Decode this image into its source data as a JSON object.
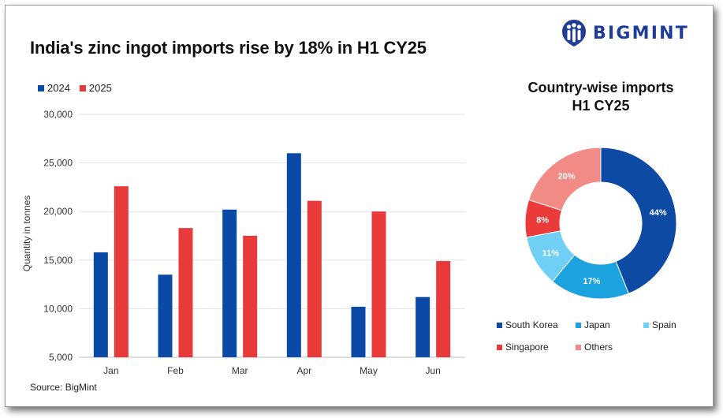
{
  "title": "India's zinc ingot imports rise by 18% in H1  CY25",
  "logo": {
    "text": "BIGMINT",
    "icon": "people-icon",
    "color": "#1f3d97"
  },
  "source": "Source: BigMint",
  "chart_data": [
    {
      "type": "bar",
      "title": "India's zinc ingot imports rise by 18% in H1  CY25",
      "xlabel": "",
      "ylabel": "Quantity in tonnes",
      "categories": [
        "Jan",
        "Feb",
        "Mar",
        "Apr",
        "May",
        "Jun"
      ],
      "series": [
        {
          "name": "2024",
          "color": "#0a4aa6",
          "values": [
            15800,
            13500,
            20200,
            26000,
            10200,
            11200
          ]
        },
        {
          "name": "2025",
          "color": "#e83a3a",
          "values": [
            22600,
            18300,
            17500,
            21100,
            20000,
            14900
          ]
        }
      ],
      "ylim": [
        5000,
        30000
      ],
      "yticks": [
        "5,000",
        "10,000",
        "15,000",
        "20,000",
        "25,000",
        "30,000"
      ],
      "ytick_values": [
        5000,
        10000,
        15000,
        20000,
        25000,
        30000
      ],
      "grid": true,
      "legend_position": "top-left"
    },
    {
      "type": "pie",
      "title": "Country-wise imports",
      "subtitle": "H1 CY25",
      "donut": true,
      "labels": [
        "South Korea",
        "Japan",
        "Spain",
        "Singapore",
        "Others"
      ],
      "values": [
        44,
        17,
        11,
        8,
        20
      ],
      "data_labels": [
        "44%",
        "17%",
        "11%",
        "8%",
        "20%"
      ],
      "colors": [
        "#0d4aa3",
        "#1ba2df",
        "#6fcff5",
        "#ea3a3a",
        "#f28a86"
      ],
      "legend_position": "bottom"
    }
  ]
}
